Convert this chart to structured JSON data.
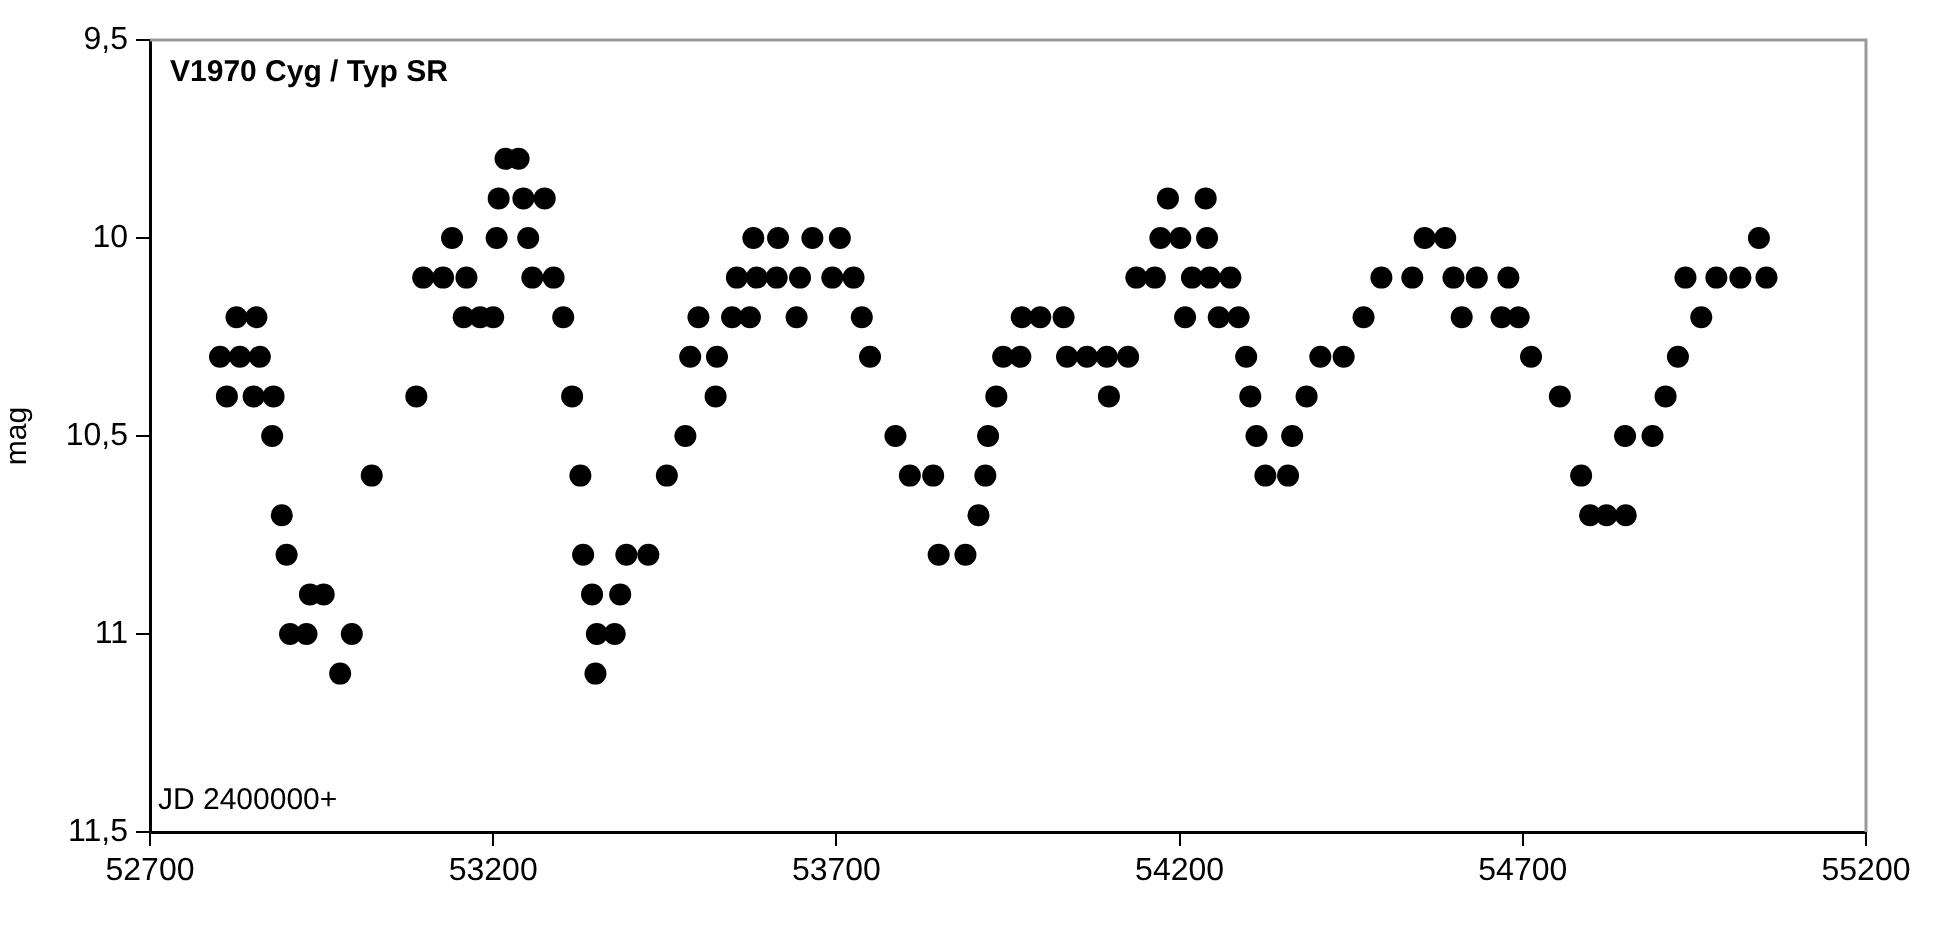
{
  "chart_data": {
    "type": "scatter",
    "title": "V1970 Cyg / Typ SR",
    "ylabel": "mag",
    "annotations": [
      "JD 2400000+"
    ],
    "xlim": [
      52700,
      55200
    ],
    "xticks": [
      52700,
      53200,
      53700,
      54200,
      54700,
      55200
    ],
    "ylim": [
      11.5,
      9.5
    ],
    "yticks": [
      {
        "value": 9.5,
        "label": "9,5"
      },
      10,
      {
        "value": 10.5,
        "label": "10,5"
      },
      11,
      {
        "value": 11.5,
        "label": "11,5"
      }
    ],
    "grid": false,
    "legend": false,
    "marker": "circle",
    "series": [
      {
        "color": "#000000",
        "x": [
          52802,
          52812,
          52826,
          52831,
          52851,
          52855,
          52860,
          52880,
          52878,
          52892,
          52899,
          52904,
          52928,
          52933,
          52953,
          52977,
          52994,
          53023,
          53088,
          53098,
          53127,
          53140,
          53157,
          53161,
          53181,
          53200,
          53205,
          53208,
          53218,
          53237,
          53244,
          53251,
          53257,
          53275,
          53288,
          53302,
          53315,
          53327,
          53331,
          53344,
          53349,
          53351,
          53377,
          53385,
          53394,
          53426,
          53453,
          53480,
          53487,
          53499,
          53526,
          53524,
          53548,
          53555,
          53574,
          53579,
          53584,
          53613,
          53615,
          53642,
          53647,
          53665,
          53694,
          53705,
          53725,
          53737,
          53749,
          53786,
          53807,
          53841,
          53849,
          53888,
          53907,
          53917,
          53921,
          53933,
          53943,
          53968,
          53970,
          53997,
          54031,
          54036,
          54065,
          54094,
          54097,
          54125,
          54137,
          54164,
          54172,
          54183,
          54201,
          54208,
          54218,
          54238,
          54240,
          54244,
          54257,
          54274,
          54286,
          54297,
          54303,
          54312,
          54325,
          54358,
          54364,
          54385,
          54405,
          54439,
          54468,
          54494,
          54539,
          54557,
          54587,
          54599,
          54611,
          54633,
          54669,
          54679,
          54694,
          54712,
          54754,
          54785,
          54798,
          54822,
          54850,
          54849,
          54889,
          54908,
          54926,
          54937,
          54960,
          54982,
          55017,
          55044,
          55055
        ],
        "values": [
          10.3,
          10.4,
          10.2,
          10.3,
          10.4,
          10.2,
          10.3,
          10.4,
          10.5,
          10.7,
          10.8,
          11.0,
          11.0,
          10.9,
          10.9,
          11.1,
          11.0,
          10.6,
          10.4,
          10.1,
          10.1,
          10.0,
          10.2,
          10.1,
          10.2,
          10.2,
          10.0,
          9.9,
          9.8,
          9.8,
          9.9,
          10.0,
          10.1,
          9.9,
          10.1,
          10.2,
          10.4,
          10.6,
          10.8,
          10.9,
          11.1,
          11.0,
          11.0,
          10.9,
          10.8,
          10.8,
          10.6,
          10.5,
          10.3,
          10.2,
          10.3,
          10.4,
          10.2,
          10.1,
          10.2,
          10.0,
          10.1,
          10.1,
          10.0,
          10.2,
          10.1,
          10.0,
          10.1,
          10.0,
          10.1,
          10.2,
          10.3,
          10.5,
          10.6,
          10.6,
          10.8,
          10.8,
          10.7,
          10.6,
          10.5,
          10.4,
          10.3,
          10.3,
          10.2,
          10.2,
          10.2,
          10.3,
          10.3,
          10.3,
          10.4,
          10.3,
          10.1,
          10.1,
          10.0,
          9.9,
          10.0,
          10.2,
          10.1,
          9.9,
          10.0,
          10.1,
          10.2,
          10.1,
          10.2,
          10.3,
          10.4,
          10.5,
          10.6,
          10.6,
          10.5,
          10.4,
          10.3,
          10.3,
          10.2,
          10.1,
          10.1,
          10.0,
          10.0,
          10.1,
          10.2,
          10.1,
          10.2,
          10.1,
          10.2,
          10.3,
          10.4,
          10.6,
          10.7,
          10.7,
          10.7,
          10.5,
          10.5,
          10.4,
          10.3,
          10.1,
          10.2,
          10.1,
          10.1,
          10.0,
          10.1
        ]
      }
    ]
  }
}
